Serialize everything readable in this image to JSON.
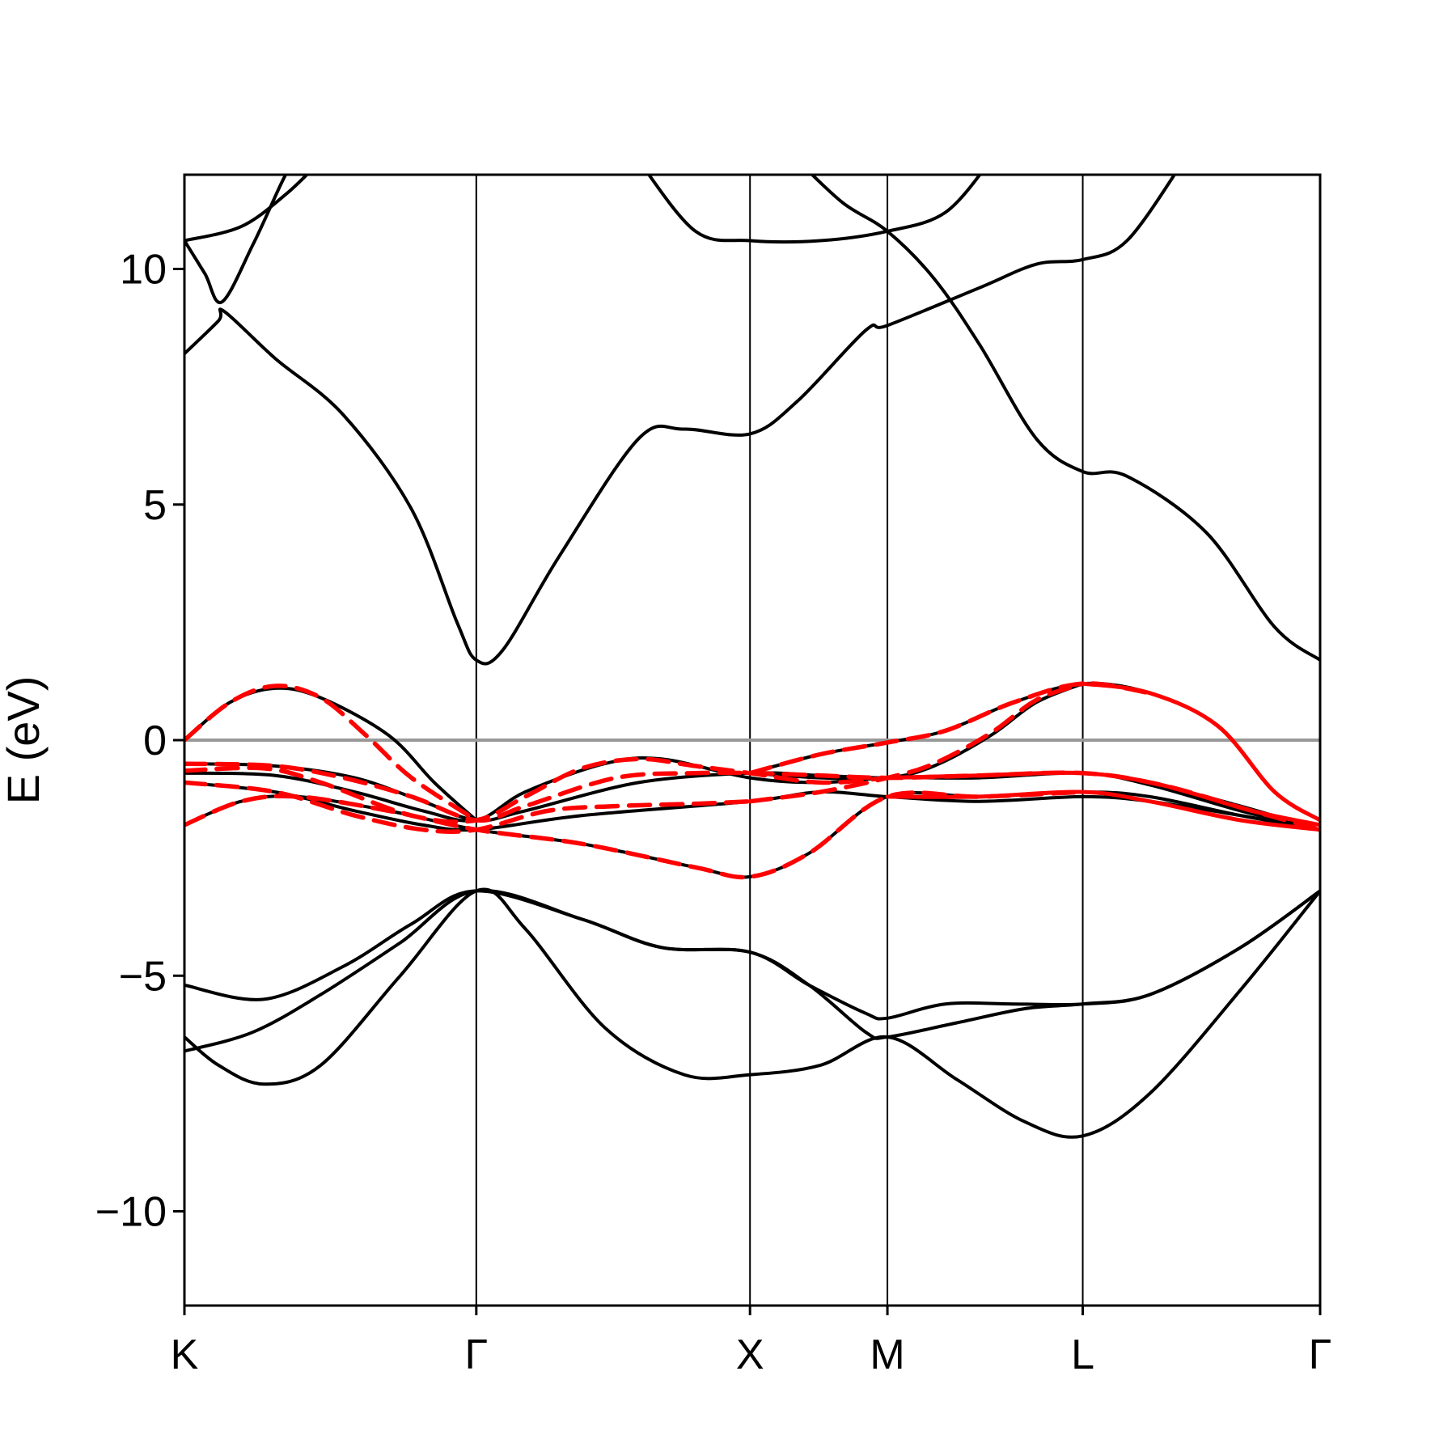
{
  "chart_data": {
    "type": "line",
    "title": "",
    "xlabel": "",
    "ylabel": "E (eV)",
    "ylim": [
      -12,
      12
    ],
    "yticks": [
      -10,
      -5,
      0,
      5,
      10
    ],
    "ytick_labels": [
      "−10",
      "−5",
      "0",
      "5",
      "10"
    ],
    "xlim": [
      0,
      1
    ],
    "kpoints": [
      {
        "label": "K",
        "x": 0.0
      },
      {
        "label": "Γ",
        "x": 0.257
      },
      {
        "label": "X",
        "x": 0.498
      },
      {
        "label": "M",
        "x": 0.619
      },
      {
        "label": "L",
        "x": 0.791
      },
      {
        "label": "Γ",
        "x": 1.0
      }
    ],
    "fermi_level": 0,
    "grid": false,
    "legend": "none",
    "colors": {
      "reference": "#000000",
      "model": "#ff0000",
      "fermi": "#999999"
    },
    "series": [
      {
        "style": "black-solid",
        "points": [
          [
            0,
            10.6
          ],
          [
            0.05,
            10.9
          ],
          [
            0.09,
            11.6
          ],
          [
            0.12,
            12.3
          ]
        ]
      },
      {
        "style": "black-solid",
        "points": [
          [
            0,
            10.6
          ],
          [
            0.018,
            9.9
          ],
          [
            0.033,
            9.3
          ],
          [
            0.06,
            10.5
          ],
          [
            0.085,
            11.8
          ],
          [
            0.1,
            12.5
          ]
        ]
      },
      {
        "style": "black-solid",
        "points": [
          [
            0,
            8.2
          ],
          [
            0.03,
            8.9
          ],
          [
            0.035,
            9.1
          ],
          [
            0.08,
            8.1
          ],
          [
            0.14,
            6.9
          ],
          [
            0.2,
            4.9
          ],
          [
            0.24,
            2.5
          ],
          [
            0.257,
            1.7
          ],
          [
            0.28,
            1.9
          ],
          [
            0.33,
            3.9
          ],
          [
            0.4,
            6.4
          ],
          [
            0.44,
            6.6
          ],
          [
            0.498,
            6.5
          ],
          [
            0.54,
            7.2
          ],
          [
            0.6,
            8.7
          ],
          [
            0.619,
            8.8
          ],
          [
            0.7,
            9.6
          ],
          [
            0.75,
            10.1
          ],
          [
            0.791,
            10.2
          ],
          [
            0.83,
            10.6
          ],
          [
            0.88,
            12.3
          ]
        ]
      },
      {
        "style": "black-solid",
        "points": [
          [
            0.4,
            12.3
          ],
          [
            0.45,
            10.8
          ],
          [
            0.498,
            10.6
          ],
          [
            0.56,
            10.6
          ],
          [
            0.619,
            10.8
          ],
          [
            0.67,
            11.2
          ],
          [
            0.71,
            12.3
          ]
        ]
      },
      {
        "style": "black-solid",
        "points": [
          [
            0.54,
            12.3
          ],
          [
            0.58,
            11.4
          ],
          [
            0.619,
            10.8
          ],
          [
            0.66,
            9.8
          ],
          [
            0.7,
            8.4
          ],
          [
            0.75,
            6.4
          ],
          [
            0.791,
            5.7
          ],
          [
            0.83,
            5.6
          ],
          [
            0.9,
            4.4
          ],
          [
            0.96,
            2.4
          ],
          [
            1.0,
            1.7
          ]
        ]
      },
      {
        "style": "black-solid",
        "points": [
          [
            0,
            -0.5
          ],
          [
            0.08,
            -0.55
          ],
          [
            0.15,
            -0.8
          ],
          [
            0.21,
            -1.3
          ],
          [
            0.257,
            -1.7
          ],
          [
            0.3,
            -1.5
          ],
          [
            0.4,
            -0.9
          ],
          [
            0.498,
            -0.7
          ],
          [
            0.56,
            -0.75
          ],
          [
            0.619,
            -0.8
          ],
          [
            0.7,
            -0.75
          ],
          [
            0.791,
            -0.7
          ],
          [
            0.85,
            -0.9
          ],
          [
            0.93,
            -1.4
          ],
          [
            1.0,
            -1.9
          ]
        ]
      },
      {
        "style": "black-solid",
        "points": [
          [
            0,
            -0.7
          ],
          [
            0.08,
            -0.75
          ],
          [
            0.15,
            -1.1
          ],
          [
            0.21,
            -1.5
          ],
          [
            0.257,
            -1.7
          ],
          [
            0.3,
            -1.1
          ],
          [
            0.37,
            -0.5
          ],
          [
            0.42,
            -0.4
          ],
          [
            0.498,
            -0.8
          ],
          [
            0.56,
            -0.9
          ],
          [
            0.619,
            -0.8
          ],
          [
            0.7,
            -0.8
          ],
          [
            0.791,
            -0.7
          ],
          [
            0.85,
            -0.95
          ],
          [
            0.93,
            -1.5
          ],
          [
            1.0,
            -1.9
          ]
        ]
      },
      {
        "style": "black-solid",
        "points": [
          [
            0,
            -0.9
          ],
          [
            0.08,
            -1.1
          ],
          [
            0.15,
            -1.5
          ],
          [
            0.21,
            -1.8
          ],
          [
            0.257,
            -1.9
          ],
          [
            0.35,
            -1.6
          ],
          [
            0.498,
            -1.3
          ],
          [
            0.56,
            -1.1
          ],
          [
            0.619,
            -1.2
          ],
          [
            0.7,
            -1.3
          ],
          [
            0.791,
            -1.2
          ],
          [
            0.85,
            -1.3
          ],
          [
            0.93,
            -1.6
          ],
          [
            1.0,
            -1.9
          ]
        ]
      },
      {
        "style": "black-solid",
        "points": [
          [
            0,
            -1.8
          ],
          [
            0.05,
            -1.3
          ],
          [
            0.1,
            -1.2
          ],
          [
            0.18,
            -1.5
          ],
          [
            0.257,
            -1.9
          ],
          [
            0.35,
            -2.2
          ],
          [
            0.45,
            -2.7
          ],
          [
            0.498,
            -2.9
          ],
          [
            0.55,
            -2.4
          ],
          [
            0.619,
            -1.2
          ],
          [
            0.7,
            -1.2
          ],
          [
            0.791,
            -1.1
          ],
          [
            0.85,
            -1.2
          ],
          [
            0.93,
            -1.6
          ],
          [
            1.0,
            -1.9
          ]
        ]
      },
      {
        "style": "black-solid",
        "points": [
          [
            0,
            0
          ],
          [
            0.04,
            0.8
          ],
          [
            0.08,
            1.1
          ],
          [
            0.12,
            0.9
          ],
          [
            0.18,
            0.1
          ],
          [
            0.22,
            -0.9
          ],
          [
            0.257,
            -1.7
          ]
        ]
      },
      {
        "style": "black-solid",
        "points": [
          [
            0.498,
            -0.7
          ],
          [
            0.56,
            -0.3
          ],
          [
            0.619,
            -0.05
          ],
          [
            0.67,
            0.2
          ],
          [
            0.73,
            0.8
          ],
          [
            0.791,
            1.2
          ],
          [
            0.85,
            1.0
          ],
          [
            0.91,
            0.3
          ],
          [
            0.96,
            -1.1
          ],
          [
            1.0,
            -1.7
          ]
        ]
      },
      {
        "style": "black-solid",
        "points": [
          [
            0.498,
            -0.7
          ],
          [
            0.56,
            -0.8
          ],
          [
            0.619,
            -0.8
          ],
          [
            0.66,
            -0.55
          ],
          [
            0.71,
            0.1
          ],
          [
            0.75,
            0.8
          ],
          [
            0.791,
            1.2
          ]
        ]
      },
      {
        "style": "black-solid",
        "points": [
          [
            0,
            -5.2
          ],
          [
            0.07,
            -5.5
          ],
          [
            0.14,
            -4.8
          ],
          [
            0.2,
            -3.9
          ],
          [
            0.257,
            -3.2
          ],
          [
            0.35,
            -3.8
          ],
          [
            0.42,
            -4.4
          ],
          [
            0.498,
            -4.5
          ],
          [
            0.55,
            -5.2
          ],
          [
            0.6,
            -5.8
          ],
          [
            0.619,
            -5.9
          ],
          [
            0.67,
            -5.6
          ],
          [
            0.73,
            -5.6
          ],
          [
            0.791,
            -5.6
          ],
          [
            0.85,
            -5.4
          ],
          [
            0.93,
            -4.4
          ],
          [
            1.0,
            -3.2
          ]
        ]
      },
      {
        "style": "black-solid",
        "points": [
          [
            0,
            -6.6
          ],
          [
            0.06,
            -6.2
          ],
          [
            0.12,
            -5.4
          ],
          [
            0.19,
            -4.3
          ],
          [
            0.257,
            -3.2
          ],
          [
            0.35,
            -3.8
          ],
          [
            0.42,
            -4.4
          ],
          [
            0.498,
            -4.5
          ],
          [
            0.55,
            -5.2
          ],
          [
            0.6,
            -6.2
          ],
          [
            0.619,
            -6.3
          ],
          [
            0.68,
            -6.0
          ],
          [
            0.74,
            -5.7
          ],
          [
            0.791,
            -5.6
          ],
          [
            0.85,
            -5.4
          ],
          [
            0.93,
            -4.4
          ],
          [
            1.0,
            -3.2
          ]
        ]
      },
      {
        "style": "black-solid",
        "points": [
          [
            0,
            -6.3
          ],
          [
            0.03,
            -6.9
          ],
          [
            0.07,
            -7.3
          ],
          [
            0.12,
            -6.9
          ],
          [
            0.19,
            -5.0
          ],
          [
            0.257,
            -3.2
          ],
          [
            0.3,
            -4.0
          ],
          [
            0.37,
            -6.1
          ],
          [
            0.44,
            -7.1
          ],
          [
            0.498,
            -7.1
          ],
          [
            0.56,
            -6.9
          ],
          [
            0.619,
            -6.3
          ],
          [
            0.68,
            -7.2
          ],
          [
            0.74,
            -8.1
          ],
          [
            0.791,
            -8.4
          ],
          [
            0.85,
            -7.5
          ],
          [
            0.93,
            -5.3
          ],
          [
            1.0,
            -3.2
          ]
        ]
      },
      {
        "style": "red-dashed",
        "points": [
          [
            0,
            0
          ],
          [
            0.04,
            0.8
          ],
          [
            0.08,
            1.15
          ],
          [
            0.12,
            0.9
          ],
          [
            0.16,
            0.1
          ],
          [
            0.2,
            -0.8
          ],
          [
            0.257,
            -1.7
          ]
        ]
      },
      {
        "style": "red-dashed",
        "points": [
          [
            0,
            -0.5
          ],
          [
            0.08,
            -0.55
          ],
          [
            0.14,
            -0.8
          ],
          [
            0.2,
            -1.2
          ],
          [
            0.257,
            -1.7
          ],
          [
            0.3,
            -1.4
          ],
          [
            0.38,
            -0.8
          ],
          [
            0.45,
            -0.7
          ],
          [
            0.498,
            -0.7
          ],
          [
            0.56,
            -0.75
          ],
          [
            0.619,
            -0.8
          ],
          [
            0.7,
            -0.75
          ],
          [
            0.791,
            -0.7
          ],
          [
            0.86,
            -0.95
          ],
          [
            0.94,
            -1.5
          ],
          [
            1.0,
            -1.9
          ]
        ]
      },
      {
        "style": "red-dashed",
        "points": [
          [
            0,
            -0.65
          ],
          [
            0.07,
            -0.6
          ],
          [
            0.12,
            -0.9
          ],
          [
            0.2,
            -1.6
          ],
          [
            0.257,
            -1.7
          ],
          [
            0.3,
            -1.2
          ],
          [
            0.35,
            -0.6
          ],
          [
            0.4,
            -0.4
          ],
          [
            0.45,
            -0.55
          ],
          [
            0.498,
            -0.7
          ],
          [
            0.56,
            -0.9
          ],
          [
            0.619,
            -0.8
          ]
        ]
      },
      {
        "style": "red-dashed",
        "points": [
          [
            0,
            -0.9
          ],
          [
            0.08,
            -1.1
          ],
          [
            0.15,
            -1.6
          ],
          [
            0.21,
            -1.9
          ],
          [
            0.257,
            -1.9
          ],
          [
            0.32,
            -1.5
          ],
          [
            0.38,
            -1.4
          ],
          [
            0.45,
            -1.35
          ],
          [
            0.498,
            -1.3
          ]
        ]
      },
      {
        "style": "red-dashed",
        "points": [
          [
            0,
            -1.8
          ],
          [
            0.05,
            -1.3
          ],
          [
            0.1,
            -1.2
          ],
          [
            0.18,
            -1.5
          ],
          [
            0.257,
            -1.9
          ],
          [
            0.35,
            -2.2
          ],
          [
            0.45,
            -2.7
          ],
          [
            0.498,
            -2.9
          ],
          [
            0.55,
            -2.4
          ],
          [
            0.619,
            -1.2
          ],
          [
            0.7,
            -1.2
          ],
          [
            0.791,
            -1.1
          ]
        ]
      },
      {
        "style": "red-dashed",
        "points": [
          [
            0.498,
            -0.7
          ],
          [
            0.56,
            -0.3
          ],
          [
            0.619,
            -0.05
          ],
          [
            0.67,
            0.2
          ],
          [
            0.73,
            0.8
          ],
          [
            0.791,
            1.2
          ],
          [
            0.85,
            1.0
          ]
        ]
      },
      {
        "style": "red-dashed",
        "points": [
          [
            0.498,
            -1.3
          ],
          [
            0.56,
            -1.1
          ],
          [
            0.619,
            -0.8
          ],
          [
            0.66,
            -0.5
          ],
          [
            0.71,
            0.15
          ],
          [
            0.75,
            0.85
          ],
          [
            0.791,
            1.2
          ]
        ]
      },
      {
        "style": "red-solid",
        "points": [
          [
            0.791,
            1.2
          ],
          [
            0.85,
            1.0
          ],
          [
            0.91,
            0.3
          ],
          [
            0.96,
            -1.1
          ],
          [
            1.0,
            -1.7
          ]
        ]
      },
      {
        "style": "red-solid",
        "points": [
          [
            0.619,
            -1.2
          ],
          [
            0.7,
            -1.2
          ],
          [
            0.791,
            -1.1
          ],
          [
            0.85,
            -1.3
          ],
          [
            0.93,
            -1.7
          ],
          [
            1.0,
            -1.9
          ]
        ]
      },
      {
        "style": "red-solid",
        "points": [
          [
            0.619,
            -0.8
          ],
          [
            0.7,
            -0.75
          ],
          [
            0.791,
            -0.7
          ],
          [
            0.86,
            -0.95
          ],
          [
            0.94,
            -1.5
          ],
          [
            1.0,
            -1.8
          ]
        ]
      }
    ]
  }
}
